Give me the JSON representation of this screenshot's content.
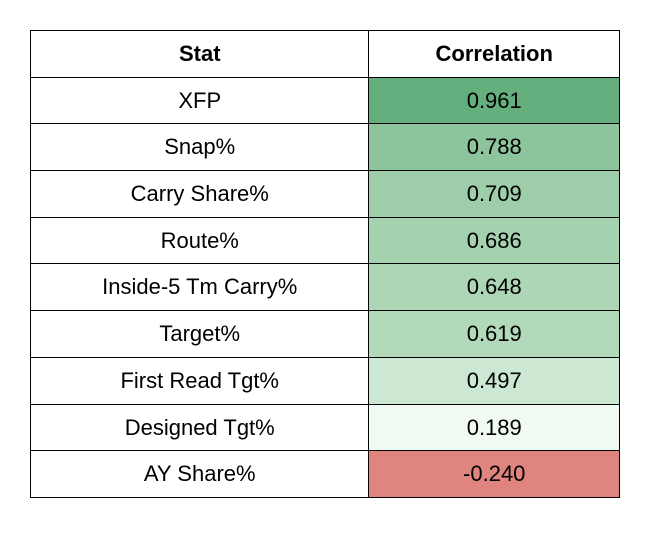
{
  "correlation_table": {
    "type": "table",
    "columns": [
      {
        "label": "Stat",
        "width_pct": 58,
        "align": "center"
      },
      {
        "label": "Correlation",
        "width_pct": 42,
        "align": "center"
      }
    ],
    "header_fontsize": 22,
    "header_fontweight": 700,
    "cell_fontsize": 22,
    "border_color": "#000000",
    "background_color": "#ffffff",
    "rows": [
      {
        "stat": "XFP",
        "correlation": "0.961",
        "value_bg": "#65ae7e"
      },
      {
        "stat": "Snap%",
        "correlation": "0.788",
        "value_bg": "#8dc49c"
      },
      {
        "stat": "Carry Share%",
        "correlation": "0.709",
        "value_bg": "#9ecea9"
      },
      {
        "stat": "Route%",
        "correlation": "0.686",
        "value_bg": "#a4d1ae"
      },
      {
        "stat": "Inside-5 Tm Carry%",
        "correlation": "0.648",
        "value_bg": "#acd6b5"
      },
      {
        "stat": "Target%",
        "correlation": "0.619",
        "value_bg": "#b2d9ba"
      },
      {
        "stat": "First Read Tgt%",
        "correlation": "0.497",
        "value_bg": "#cde8d2"
      },
      {
        "stat": "Designed Tgt%",
        "correlation": "0.189",
        "value_bg": "#f0f9f2"
      },
      {
        "stat": "AY Share%",
        "correlation": "-0.240",
        "value_bg": "#e08480"
      }
    ]
  }
}
